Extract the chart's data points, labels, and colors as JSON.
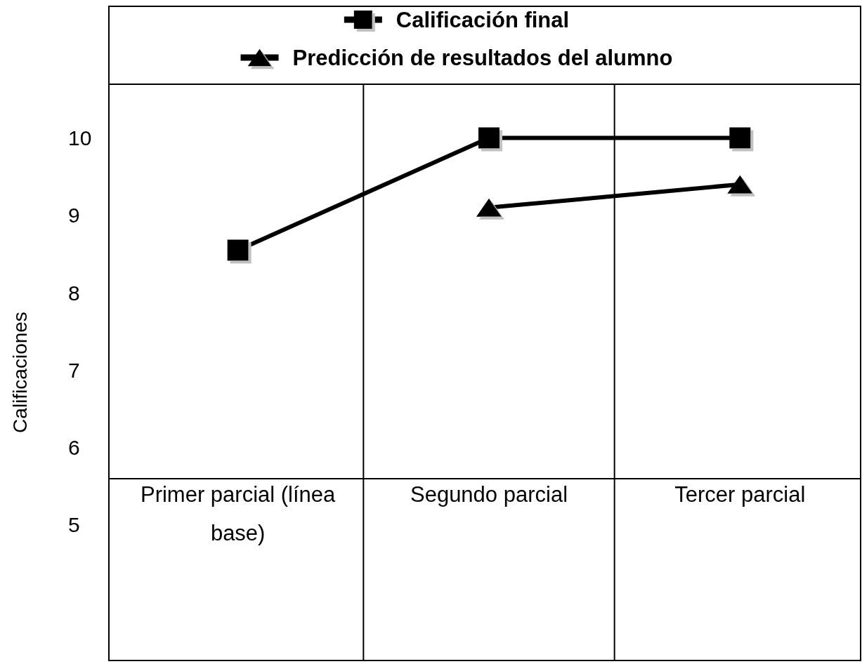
{
  "chart_data": {
    "type": "line",
    "ylabel": "Calificaciones",
    "categories": [
      "Primer parcial (línea base)",
      "Segundo parcial",
      "Tercer parcial"
    ],
    "series": [
      {
        "name": "Calificación final",
        "color": "#000000",
        "marker": "square",
        "values": [
          8.55,
          10,
          10
        ]
      },
      {
        "name": "Predicción de resultados del alumno",
        "color": "#000000",
        "marker": "triangle",
        "values": [
          null,
          9.1,
          9.4
        ]
      }
    ],
    "ylim": [
      3.25,
      11.7
    ],
    "yticks": [
      5,
      6,
      7,
      8,
      9,
      10
    ],
    "legend": "top"
  }
}
